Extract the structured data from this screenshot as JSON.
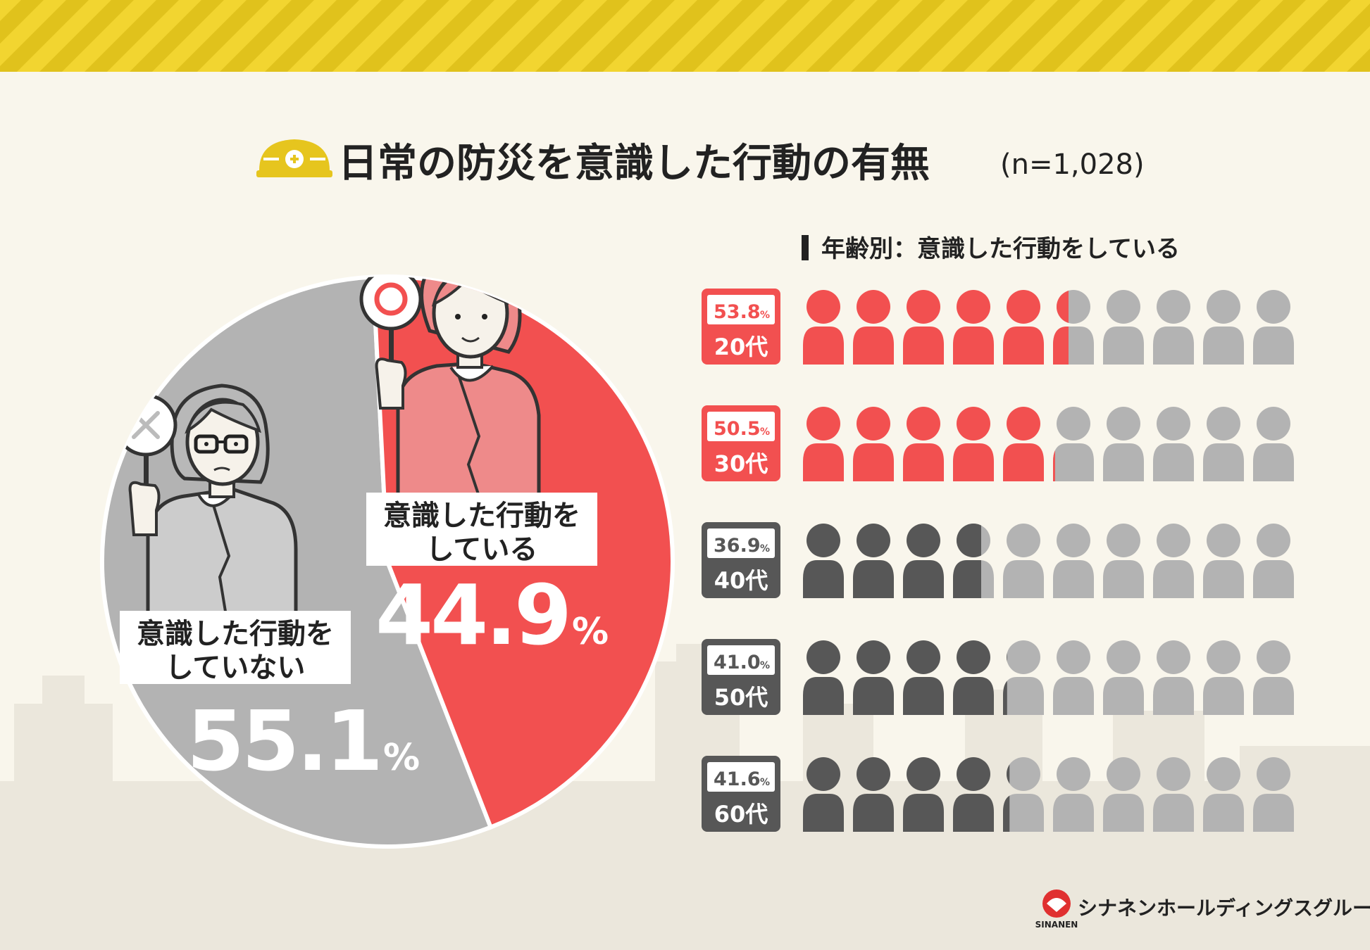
{
  "title": {
    "main": "日常の防災を意識した行動の有無",
    "sample": "(n=1,028)"
  },
  "chart_data": [
    {
      "type": "pie",
      "title": "日常の防災を意識した行動の有無",
      "slices": [
        {
          "label": "意識した行動をしている",
          "label_lines": [
            "意識した行動を",
            "している"
          ],
          "value": 44.9,
          "unit": "%",
          "color": "#f25050"
        },
        {
          "label": "意識した行動をしていない",
          "label_lines": [
            "意識した行動を",
            "していない"
          ],
          "value": 55.1,
          "unit": "%",
          "color": "#b3b3b3"
        }
      ]
    },
    {
      "type": "pictogram",
      "title": "年齢別：意識した行動をしている",
      "icons_per_row": 10,
      "unit": "%",
      "categories": [
        "20代",
        "30代",
        "40代",
        "50代",
        "60代"
      ],
      "values": [
        53.8,
        50.5,
        36.9,
        41.0,
        41.6
      ],
      "value_labels": [
        "53.8",
        "50.5",
        "36.9",
        "41.0",
        "41.6"
      ],
      "highlight": [
        true,
        true,
        false,
        false,
        false
      ]
    }
  ],
  "colors": {
    "red": "#f25050",
    "dark_gray": "#575757",
    "light_gray": "#b3b3b3",
    "stripe_yellow": "#f2d530",
    "background": "#f9f6ec",
    "helmet": "#e6c51e"
  },
  "brand": {
    "name": "シナネンホールディングスグループ",
    "logo_text": "SINANEN"
  },
  "icons": {
    "helmet": "helmet-icon",
    "person": "person-icon",
    "check_sign": "circle-sign-icon",
    "cross_sign": "cross-sign-icon"
  }
}
